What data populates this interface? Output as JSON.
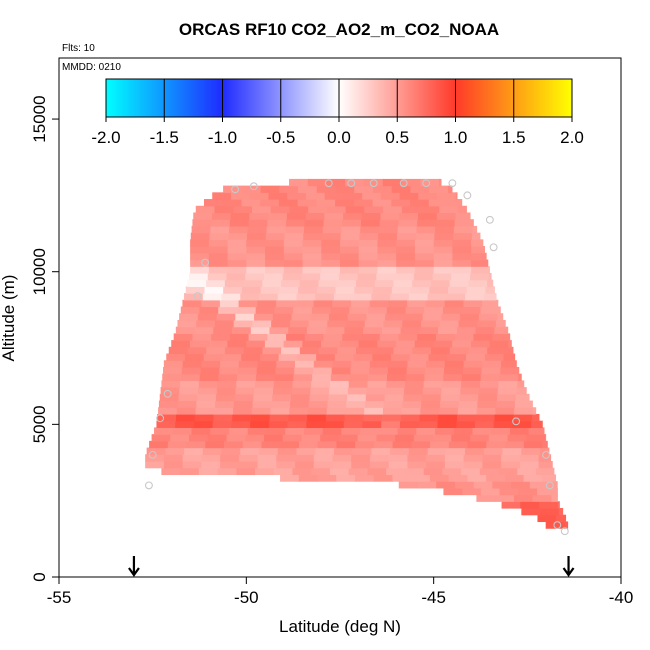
{
  "chart_data": {
    "type": "heatmap",
    "title": "ORCAS RF10 CO2_AO2_m_CO2_NOAA",
    "subtitle_flights": "Flts: 10",
    "subtitle_date": "MMDD: 0210",
    "xlabel": "Latitude (deg N)",
    "ylabel": "Altitude (m)",
    "xlim": [
      -55,
      -40
    ],
    "ylim": [
      0,
      17000
    ],
    "x_ticks": [
      -55,
      -50,
      -45,
      -40
    ],
    "x_tick_labels": [
      "-55",
      "-50",
      "-45",
      "-40"
    ],
    "y_ticks": [
      0,
      5000,
      10000,
      15000
    ],
    "y_tick_labels": [
      "0",
      "5000",
      "10000",
      "15000"
    ],
    "colorbar": {
      "range": [
        -2.0,
        2.0
      ],
      "ticks": [
        -2.0,
        -1.5,
        -1.0,
        -0.5,
        0.0,
        0.5,
        1.0,
        1.5,
        2.0
      ],
      "tick_labels": [
        "-2.0",
        "-1.5",
        "-1.0",
        "-0.5",
        "0.0",
        "0.5",
        "1.0",
        "1.5",
        "2.0"
      ]
    },
    "colors": {
      "neg_end": "#00ffff",
      "neg_mid": "#1f2bff",
      "zero": "#ffffff",
      "pos_mid": "#ff3a2a",
      "pos_end": "#ffff00"
    },
    "profile_edges": {
      "altitude": [
        1600,
        2000,
        2500,
        3000,
        3500,
        4000,
        5000,
        6000,
        7000,
        8000,
        9000,
        10000,
        11000,
        12000,
        12700,
        13000
      ],
      "south_lat": [
        -41.9,
        -42.3,
        -43.5,
        -45.5,
        -52.7,
        -52.7,
        -52.4,
        -52.3,
        -52.2,
        -51.9,
        -51.7,
        -51.5,
        -51.5,
        -51.4,
        -50.7,
        -48.3
      ],
      "north_lat": [
        -41.4,
        -41.5,
        -41.7,
        -41.7,
        -41.8,
        -41.9,
        -42.1,
        -42.5,
        -42.8,
        -43.0,
        -43.3,
        -43.5,
        -43.7,
        -44.1,
        -44.5,
        -44.9
      ]
    },
    "value_layers": [
      {
        "altitude": [
          1600,
          2500
        ],
        "value": 0.78
      },
      {
        "altitude": [
          2500,
          3200
        ],
        "value": 0.55
      },
      {
        "altitude": [
          3200,
          4300
        ],
        "value": 0.48
      },
      {
        "altitude": [
          4300,
          4800
        ],
        "value": 0.62
      },
      {
        "altitude": [
          4800,
          5300
        ],
        "value": 0.85
      },
      {
        "altitude": [
          5300,
          6500
        ],
        "value": 0.52
      },
      {
        "altitude": [
          6500,
          8000
        ],
        "value": 0.6
      },
      {
        "altitude": [
          8000,
          9000
        ],
        "value": 0.55
      },
      {
        "altitude": [
          9000,
          10200
        ],
        "value": 0.3
      },
      {
        "altitude": [
          10200,
          11500
        ],
        "value": 0.55
      },
      {
        "altitude": [
          11500,
          13000
        ],
        "value": 0.6
      }
    ],
    "sample_points_lat": [
      -52.6,
      -52.5,
      -52.3,
      -52.1,
      -51.3,
      -51.1,
      -50.3,
      -49.8,
      -47.8,
      -47.2,
      -46.6,
      -45.8,
      -45.2,
      -44.5,
      -44.1,
      -43.5,
      -43.4,
      -42.8,
      -42.0,
      -41.9,
      -41.7,
      -41.5
    ],
    "sample_points_alt": [
      3000,
      4000,
      5200,
      6000,
      9200,
      10300,
      12700,
      12800,
      12900,
      12900,
      12900,
      12900,
      12900,
      12900,
      12500,
      11700,
      10800,
      5100,
      4000,
      3000,
      1700,
      1500
    ],
    "arrow_markers_lat": [
      -53.0,
      -41.4
    ]
  }
}
